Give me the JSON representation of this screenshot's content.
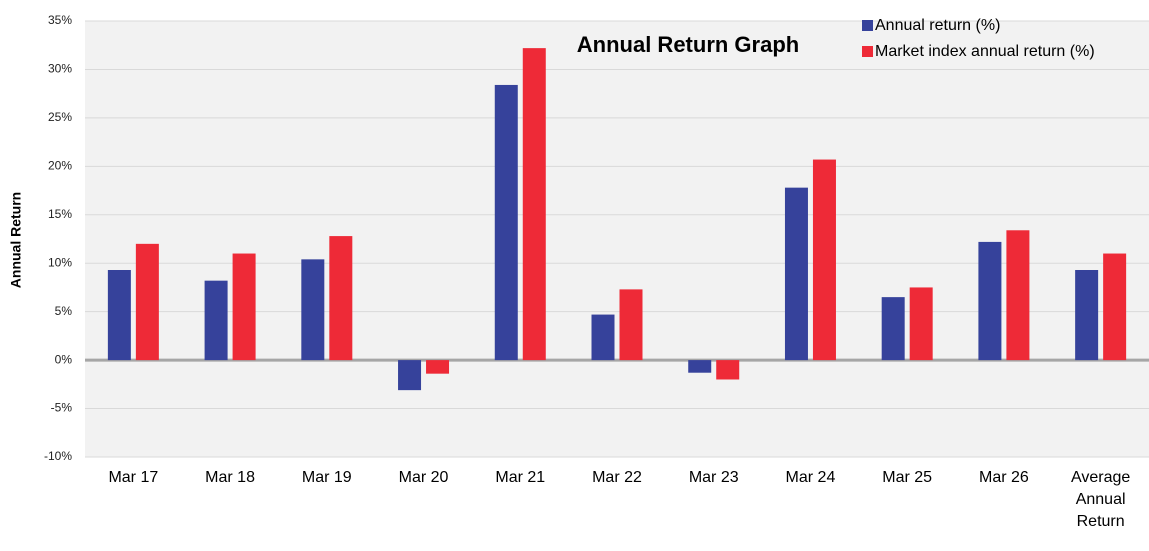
{
  "chart_data": {
    "type": "bar",
    "title": "Annual Return Graph",
    "y_label": "Annual Return",
    "categories": [
      "Mar 17",
      "Mar 18",
      "Mar 19",
      "Mar 20",
      "Mar 21",
      "Mar 22",
      "Mar 23",
      "Mar 24",
      "Mar 25",
      "Mar 26",
      "Average Annual Return"
    ],
    "series": [
      {
        "name": "Annual return (%)",
        "color": "#36429b",
        "values": [
          9.3,
          8.2,
          10.4,
          -3.1,
          28.4,
          4.7,
          -1.3,
          17.8,
          6.5,
          12.2,
          9.3
        ]
      },
      {
        "name": "Market index annual return (%)",
        "color": "#ee2a37",
        "values": [
          12.0,
          11.0,
          12.8,
          -1.4,
          32.2,
          7.3,
          -2.0,
          20.7,
          7.5,
          13.4,
          11.0
        ]
      }
    ],
    "ylim": [
      -10,
      35
    ],
    "yticks": [
      {
        "value": -10,
        "label": "-10%"
      },
      {
        "value": -5,
        "label": "-5%"
      },
      {
        "value": 0,
        "label": "0%"
      },
      {
        "value": 5,
        "label": "5%"
      },
      {
        "value": 10,
        "label": "10%"
      },
      {
        "value": 15,
        "label": "15%"
      },
      {
        "value": 20,
        "label": "20%"
      },
      {
        "value": 25,
        "label": "25%"
      },
      {
        "value": 30,
        "label": "30%"
      },
      {
        "value": 35,
        "label": "35%"
      }
    ],
    "grid": true,
    "legend": "upper right"
  }
}
